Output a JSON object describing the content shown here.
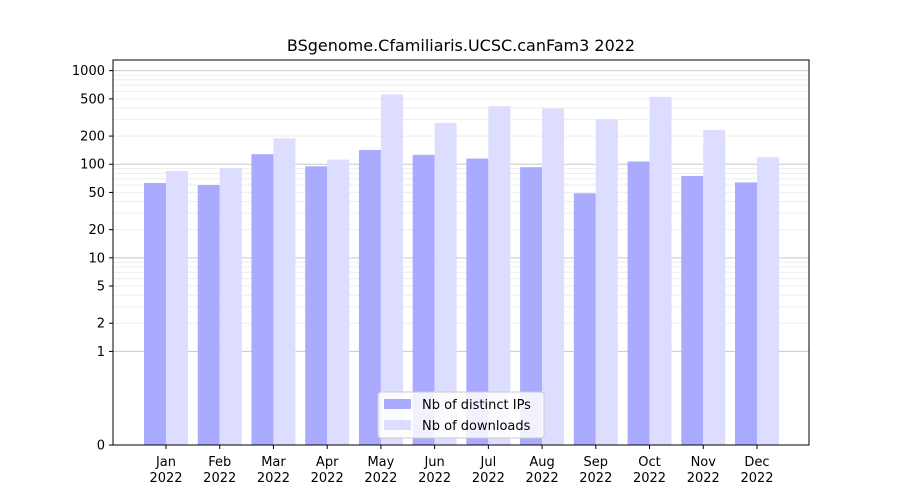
{
  "chart_data": {
    "type": "bar",
    "title": "BSgenome.Cfamiliaris.UCSC.canFam3 2022",
    "xlabel": "",
    "ylabel": "",
    "yscale": "symlog",
    "ylim": [
      0,
      1300
    ],
    "y_ticks": [
      0,
      1,
      2,
      5,
      10,
      20,
      50,
      100,
      200,
      500,
      1000
    ],
    "categories": [
      "Jan\n2022",
      "Feb\n2022",
      "Mar\n2022",
      "Apr\n2022",
      "May\n2022",
      "Jun\n2022",
      "Jul\n2022",
      "Aug\n2022",
      "Sep\n2022",
      "Oct\n2022",
      "Nov\n2022",
      "Dec\n2022"
    ],
    "series": [
      {
        "name": "Nb of distinct IPs",
        "color": "#aaaaff",
        "values": [
          63,
          60,
          128,
          95,
          142,
          126,
          115,
          93,
          49,
          107,
          75,
          64
        ]
      },
      {
        "name": "Nb of downloads",
        "color": "#ddddff",
        "values": [
          85,
          91,
          189,
          112,
          558,
          277,
          417,
          394,
          303,
          524,
          232,
          119
        ]
      }
    ],
    "legend_position": "lower center",
    "grid": true
  }
}
